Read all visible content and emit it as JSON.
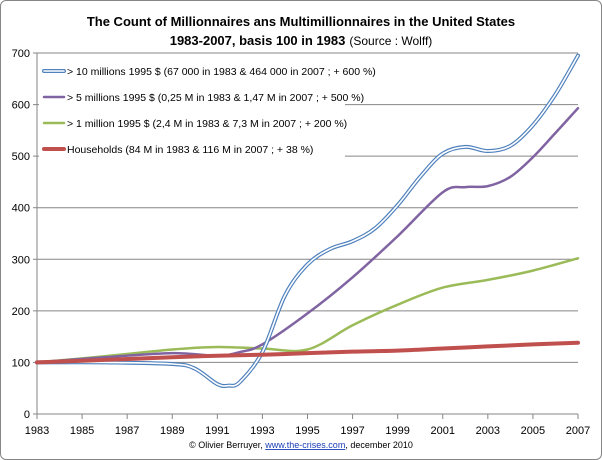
{
  "chart_data": {
    "type": "line",
    "title": "The Count of Millionnaires  ans Multimillionnaires  in the United States",
    "subtitle": "1983-2007,  basis 100 in 1983",
    "source": "(Source : Wolff)",
    "xlabel": "",
    "ylabel": "",
    "xlim": [
      1983,
      2007
    ],
    "ylim": [
      0,
      700
    ],
    "x_ticks": [
      "1983",
      "1985",
      "1987",
      "1989",
      "1991",
      "1993",
      "1995",
      "1997",
      "1999",
      "2001",
      "2003",
      "2005",
      "2007"
    ],
    "y_ticks": [
      "0",
      "100",
      "200",
      "300",
      "400",
      "500",
      "600",
      "700"
    ],
    "grid": "horizontal",
    "legend_position": "top-left",
    "series": [
      {
        "name": "> 10 millions 1995 $ (67 000 in 1983 & 464 000 in 2007 ; + 600 %)",
        "color": "#4f81bd",
        "style": "double",
        "points": [
          [
            1983,
            100
          ],
          [
            1986,
            100
          ],
          [
            1989,
            97
          ],
          [
            1990,
            88
          ],
          [
            1991,
            58
          ],
          [
            1991.5,
            55
          ],
          [
            1992,
            62
          ],
          [
            1993,
            120
          ],
          [
            1994,
            230
          ],
          [
            1995,
            290
          ],
          [
            1996,
            320
          ],
          [
            1997,
            335
          ],
          [
            1998,
            360
          ],
          [
            1999,
            405
          ],
          [
            2000,
            460
          ],
          [
            2001,
            505
          ],
          [
            2002,
            518
          ],
          [
            2003,
            510
          ],
          [
            2004,
            520
          ],
          [
            2005,
            560
          ],
          [
            2006,
            620
          ],
          [
            2007,
            695
          ]
        ]
      },
      {
        "name": "> 5 millions 1995 $ (0,25 M in 1983 & 1,47 M in 2007 ; + 500 %)",
        "color": "#8064a2",
        "style": "solid",
        "points": [
          [
            1983,
            100
          ],
          [
            1986,
            110
          ],
          [
            1989,
            118
          ],
          [
            1991,
            113
          ],
          [
            1992,
            120
          ],
          [
            1993,
            135
          ],
          [
            1995,
            195
          ],
          [
            1997,
            265
          ],
          [
            1999,
            345
          ],
          [
            2001,
            430
          ],
          [
            2002,
            440
          ],
          [
            2003,
            442
          ],
          [
            2004,
            460
          ],
          [
            2005,
            498
          ],
          [
            2006,
            545
          ],
          [
            2007,
            593
          ]
        ]
      },
      {
        "name": "> 1 million 1995 $ (2,4 M in 1983 & 7,3 M in 2007 ; + 200 %)",
        "color": "#9bbb59",
        "style": "solid",
        "points": [
          [
            1983,
            100
          ],
          [
            1986,
            112
          ],
          [
            1989,
            125
          ],
          [
            1991,
            130
          ],
          [
            1993,
            127
          ],
          [
            1995,
            125
          ],
          [
            1997,
            172
          ],
          [
            1999,
            212
          ],
          [
            2001,
            245
          ],
          [
            2003,
            260
          ],
          [
            2005,
            278
          ],
          [
            2007,
            302
          ]
        ]
      },
      {
        "name": "Households (84 M in 1983 & 116 M in 2007 ; + 38 %)",
        "color": "#c0504d",
        "style": "thick",
        "points": [
          [
            1983,
            100
          ],
          [
            1986,
            105
          ],
          [
            1989,
            110
          ],
          [
            1991,
            113
          ],
          [
            1993,
            115
          ],
          [
            1995,
            118
          ],
          [
            1997,
            121
          ],
          [
            1999,
            123
          ],
          [
            2001,
            127
          ],
          [
            2003,
            131
          ],
          [
            2005,
            135
          ],
          [
            2007,
            138
          ]
        ]
      }
    ]
  },
  "footer": {
    "prefix": "© Olivier Berruyer, ",
    "link": "www.the-crises.com",
    "suffix": ", december 2010"
  }
}
